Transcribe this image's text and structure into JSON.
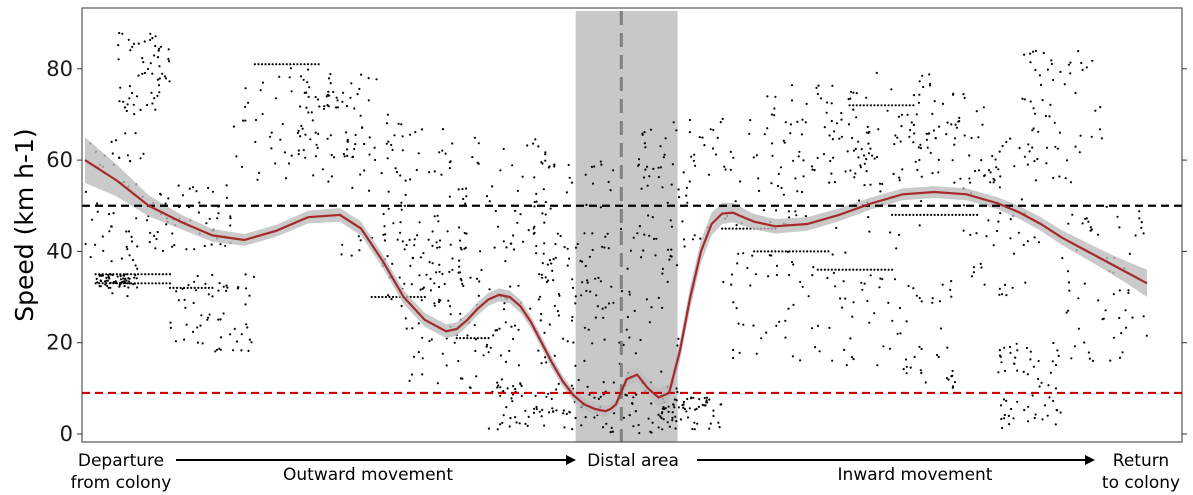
{
  "chart_data": {
    "type": "scatter",
    "xlabel_segments": {
      "departure_line1": "Departure",
      "departure_line2": "from colony",
      "outward": "Outward movement",
      "distal": "Distal area",
      "inward": "Inward movement",
      "return_line1": "Return",
      "return_line2": "to colony"
    },
    "ylabel": "Speed (km h-1)",
    "ylim": [
      0,
      92
    ],
    "yticks": [
      0,
      20,
      40,
      60,
      80
    ],
    "xlim": [
      0,
      100
    ],
    "grid": false,
    "reference_lines": [
      {
        "name": "upper threshold",
        "y": 50,
        "color": "#000000",
        "style": "dashed"
      },
      {
        "name": "lower threshold",
        "y": 9,
        "color": "#cc0000",
        "style": "dashed"
      }
    ],
    "distal_band": {
      "x_start": 46.2,
      "x_end": 55.8,
      "color": "#c8c8c8"
    },
    "distal_center_x": 50.5,
    "smooth_fit": {
      "color": "#a52a2a",
      "band_color": "#bdbdbd",
      "x": [
        0,
        3,
        6,
        9,
        12,
        15,
        18,
        21,
        24,
        26,
        28,
        30,
        32,
        34,
        35,
        36,
        37,
        38,
        39,
        40,
        41,
        42,
        43,
        44,
        45,
        46,
        47,
        48,
        49,
        49.5,
        50,
        51,
        52,
        53,
        54,
        55,
        56,
        57,
        58,
        59,
        60,
        61,
        62,
        63,
        65,
        68,
        71,
        74,
        77,
        80,
        83,
        86,
        88,
        90,
        92,
        94,
        96,
        98,
        100
      ],
      "y": [
        60,
        55.5,
        50,
        46.5,
        43.5,
        42.5,
        44.5,
        47.5,
        48,
        45,
        38,
        30,
        25,
        22.5,
        23,
        25,
        27.5,
        29.5,
        30.5,
        30,
        28,
        24.5,
        20,
        15.5,
        11.5,
        8.5,
        6.5,
        5.5,
        5,
        5.5,
        6.5,
        12,
        13,
        10,
        8,
        9,
        18,
        30,
        40,
        46,
        48.3,
        48.5,
        47.5,
        46.5,
        45.5,
        46,
        48,
        50.5,
        52.5,
        53,
        52.5,
        50.5,
        48.5,
        46,
        43,
        40.5,
        38,
        35.5,
        33
      ],
      "band_halfwidth": [
        5,
        3.5,
        2.3,
        1.6,
        1.4,
        1.3,
        1.3,
        1.4,
        1.5,
        1.5,
        1.5,
        1.5,
        1.5,
        1.5,
        1.5,
        1.4,
        1.4,
        1.4,
        1.4,
        1.4,
        1.4,
        1.3,
        1.3,
        1.3,
        1.2,
        1.2,
        1.2,
        1.2,
        1.2,
        1.2,
        1.3,
        1.4,
        1.6,
        1.8,
        1.9,
        2,
        2.2,
        2.4,
        2.5,
        2.5,
        2.3,
        2.1,
        1.9,
        1.7,
        1.6,
        1.5,
        1.4,
        1.3,
        1.3,
        1.3,
        1.3,
        1.3,
        1.4,
        1.5,
        1.6,
        1.8,
        2,
        2.4,
        3
      ]
    },
    "scatter_points_note": "",
    "scatter_clusters": [
      {
        "x": [
          0,
          6
        ],
        "y": [
          30,
          66
        ]
      },
      {
        "x": [
          1,
          5
        ],
        "y": [
          32,
          35
        ]
      },
      {
        "x": [
          3,
          8
        ],
        "y": [
          70,
          88
        ]
      },
      {
        "x": [
          6,
          14
        ],
        "y": [
          40,
          55
        ]
      },
      {
        "x": [
          8,
          16
        ],
        "y": [
          18,
          35
        ]
      },
      {
        "x": [
          14,
          24
        ],
        "y": [
          55,
          81
        ]
      },
      {
        "x": [
          20,
          30
        ],
        "y": [
          60,
          80
        ]
      },
      {
        "x": [
          24,
          34
        ],
        "y": [
          38,
          68
        ]
      },
      {
        "x": [
          28,
          36
        ],
        "y": [
          28,
          45
        ]
      },
      {
        "x": [
          30,
          40
        ],
        "y": [
          10,
          35
        ]
      },
      {
        "x": [
          34,
          44
        ],
        "y": [
          40,
          65
        ]
      },
      {
        "x": [
          36,
          46
        ],
        "y": [
          15,
          45
        ]
      },
      {
        "x": [
          38,
          46
        ],
        "y": [
          1,
          12
        ]
      },
      {
        "x": [
          42,
          50
        ],
        "y": [
          30,
          60
        ]
      },
      {
        "x": [
          46,
          56
        ],
        "y": [
          0,
          12
        ]
      },
      {
        "x": [
          46,
          56
        ],
        "y": [
          12,
          45
        ]
      },
      {
        "x": [
          52,
          58
        ],
        "y": [
          40,
          70
        ]
      },
      {
        "x": [
          54,
          60
        ],
        "y": [
          1,
          8
        ]
      },
      {
        "x": [
          58,
          68
        ],
        "y": [
          45,
          70
        ]
      },
      {
        "x": [
          60,
          72
        ],
        "y": [
          15,
          40
        ]
      },
      {
        "x": [
          64,
          74
        ],
        "y": [
          55,
          77
        ]
      },
      {
        "x": [
          70,
          80
        ],
        "y": [
          40,
          80
        ]
      },
      {
        "x": [
          72,
          82
        ],
        "y": [
          10,
          35
        ]
      },
      {
        "x": [
          76,
          86
        ],
        "y": [
          55,
          75
        ]
      },
      {
        "x": [
          82,
          90
        ],
        "y": [
          30,
          65
        ]
      },
      {
        "x": [
          86,
          92
        ],
        "y": [
          1,
          20
        ]
      },
      {
        "x": [
          88,
          96
        ],
        "y": [
          55,
          85
        ]
      },
      {
        "x": [
          92,
          100
        ],
        "y": [
          15,
          50
        ]
      }
    ],
    "scatter_segments": [
      {
        "x": [
          1,
          8
        ],
        "y": 35
      },
      {
        "x": [
          1,
          8
        ],
        "y": 33
      },
      {
        "x": [
          8,
          12
        ],
        "y": 32
      },
      {
        "x": [
          16,
          22
        ],
        "y": 81
      },
      {
        "x": [
          27,
          32
        ],
        "y": 30
      },
      {
        "x": [
          35,
          38
        ],
        "y": 21
      },
      {
        "x": [
          60,
          65
        ],
        "y": 45
      },
      {
        "x": [
          63,
          70
        ],
        "y": 40
      },
      {
        "x": [
          69,
          76
        ],
        "y": 36
      },
      {
        "x": [
          72,
          78
        ],
        "y": 72
      },
      {
        "x": [
          76,
          84
        ],
        "y": 48
      }
    ]
  }
}
